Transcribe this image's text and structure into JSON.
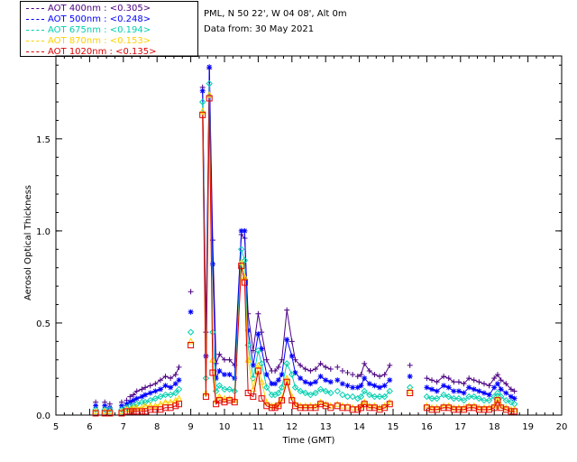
{
  "header": {
    "site": "PML, N 50 22', W 04 08', Alt 0m",
    "date": "Data from: 30 May 2021"
  },
  "legend": [
    {
      "label": "AOT  400nm : <0.305>",
      "color": "#4B0082"
    },
    {
      "label": "AOT  500nm : <0.248>",
      "color": "#0000FF"
    },
    {
      "label": "AOT  675nm : <0.194>",
      "color": "#00D0B0"
    },
    {
      "label": "AOT  870nm : <0.153>",
      "color": "#FFD000"
    },
    {
      "label": "AOT 1020nm : <0.135>",
      "color": "#E00000"
    }
  ],
  "chart_data": {
    "type": "scatter",
    "title": "",
    "xlabel": "Time (GMT)",
    "ylabel": "Aerosol Optical Thickness",
    "xlim": [
      5,
      20
    ],
    "ylim": [
      0,
      1.95
    ],
    "xticks": [
      5,
      6,
      7,
      8,
      9,
      10,
      11,
      12,
      13,
      14,
      15,
      16,
      17,
      18,
      19,
      20
    ],
    "yticks": [
      {
        "value": 0.0,
        "label": "0.0"
      },
      {
        "value": 0.5,
        "label": "0.5"
      },
      {
        "value": 1.0,
        "label": "1.0"
      },
      {
        "value": 1.5,
        "label": "1.5"
      }
    ],
    "x": [
      6.18,
      6.45,
      6.6,
      6.95,
      7.1,
      7.2,
      7.3,
      7.4,
      7.55,
      7.65,
      7.8,
      7.95,
      8.1,
      8.25,
      8.4,
      8.55,
      8.65,
      9.0,
      9.35,
      9.45,
      9.55,
      9.65,
      9.75,
      9.85,
      10.0,
      10.15,
      10.3,
      10.5,
      10.6,
      10.7,
      10.85,
      11.0,
      11.1,
      11.25,
      11.4,
      11.5,
      11.6,
      11.7,
      11.85,
      12.0,
      12.1,
      12.25,
      12.4,
      12.55,
      12.7,
      12.85,
      13.0,
      13.15,
      13.35,
      13.5,
      13.65,
      13.8,
      13.95,
      14.05,
      14.15,
      14.3,
      14.45,
      14.6,
      14.75,
      14.9,
      15.5,
      16.0,
      16.15,
      16.3,
      16.5,
      16.65,
      16.8,
      16.95,
      17.1,
      17.25,
      17.4,
      17.55,
      17.7,
      17.85,
      18.0,
      18.1,
      18.2,
      18.35,
      18.5,
      18.6
    ],
    "series": [
      {
        "name": "AOT 400nm",
        "marker": "plus",
        "color": "#4B0082",
        "values": [
          0.07,
          0.07,
          0.06,
          0.07,
          0.08,
          0.1,
          0.11,
          0.13,
          0.14,
          0.15,
          0.16,
          0.17,
          0.19,
          0.21,
          0.2,
          0.22,
          0.26,
          0.67,
          1.78,
          0.45,
          1.88,
          0.95,
          0.28,
          0.33,
          0.3,
          0.3,
          0.27,
          0.98,
          0.96,
          0.55,
          0.35,
          0.55,
          0.45,
          0.3,
          0.24,
          0.24,
          0.26,
          0.3,
          0.57,
          0.4,
          0.3,
          0.27,
          0.25,
          0.24,
          0.25,
          0.28,
          0.26,
          0.25,
          0.26,
          0.24,
          0.23,
          0.22,
          0.21,
          0.22,
          0.28,
          0.24,
          0.22,
          0.21,
          0.22,
          0.27,
          0.27,
          0.2,
          0.19,
          0.18,
          0.21,
          0.2,
          0.18,
          0.18,
          0.17,
          0.2,
          0.19,
          0.18,
          0.17,
          0.16,
          0.2,
          0.22,
          0.19,
          0.17,
          0.14,
          0.13
        ]
      },
      {
        "name": "AOT 500nm",
        "marker": "star",
        "color": "#0000FF",
        "values": [
          0.05,
          0.05,
          0.04,
          0.05,
          0.06,
          0.07,
          0.08,
          0.09,
          0.1,
          0.11,
          0.12,
          0.13,
          0.14,
          0.16,
          0.15,
          0.17,
          0.19,
          0.56,
          1.76,
          0.32,
          1.89,
          0.82,
          0.2,
          0.24,
          0.22,
          0.22,
          0.2,
          1.0,
          1.0,
          0.46,
          0.27,
          0.44,
          0.36,
          0.22,
          0.17,
          0.17,
          0.19,
          0.22,
          0.41,
          0.32,
          0.23,
          0.2,
          0.18,
          0.17,
          0.18,
          0.21,
          0.19,
          0.18,
          0.19,
          0.17,
          0.16,
          0.15,
          0.15,
          0.16,
          0.2,
          0.17,
          0.16,
          0.15,
          0.16,
          0.19,
          0.21,
          0.15,
          0.14,
          0.13,
          0.16,
          0.15,
          0.13,
          0.13,
          0.12,
          0.15,
          0.14,
          0.13,
          0.12,
          0.11,
          0.15,
          0.17,
          0.14,
          0.12,
          0.1,
          0.09
        ]
      },
      {
        "name": "AOT 675nm",
        "marker": "diamond",
        "color": "#00D0B0",
        "values": [
          0.03,
          0.03,
          0.03,
          0.03,
          0.04,
          0.05,
          0.05,
          0.06,
          0.07,
          0.07,
          0.08,
          0.09,
          0.1,
          0.11,
          0.11,
          0.12,
          0.14,
          0.45,
          1.7,
          0.2,
          1.8,
          0.45,
          0.13,
          0.16,
          0.14,
          0.14,
          0.13,
          0.9,
          0.84,
          0.38,
          0.2,
          0.35,
          0.28,
          0.15,
          0.11,
          0.11,
          0.12,
          0.15,
          0.28,
          0.22,
          0.15,
          0.13,
          0.12,
          0.11,
          0.12,
          0.14,
          0.13,
          0.12,
          0.13,
          0.11,
          0.1,
          0.1,
          0.09,
          0.1,
          0.13,
          0.11,
          0.1,
          0.1,
          0.1,
          0.13,
          0.15,
          0.1,
          0.09,
          0.09,
          0.11,
          0.1,
          0.09,
          0.09,
          0.08,
          0.1,
          0.1,
          0.09,
          0.08,
          0.08,
          0.1,
          0.12,
          0.1,
          0.08,
          0.07,
          0.06
        ]
      },
      {
        "name": "AOT 870nm",
        "marker": "triangle",
        "color": "#FFD000",
        "values": [
          0.02,
          0.02,
          0.02,
          0.02,
          0.03,
          0.03,
          0.04,
          0.04,
          0.04,
          0.05,
          0.05,
          0.05,
          0.06,
          0.07,
          0.07,
          0.08,
          0.09,
          0.4,
          1.65,
          0.12,
          1.74,
          0.3,
          0.08,
          0.1,
          0.09,
          0.09,
          0.08,
          0.83,
          0.75,
          0.3,
          0.14,
          0.27,
          0.18,
          0.07,
          0.05,
          0.05,
          0.06,
          0.09,
          0.2,
          0.1,
          0.06,
          0.05,
          0.05,
          0.05,
          0.05,
          0.07,
          0.06,
          0.05,
          0.06,
          0.05,
          0.05,
          0.04,
          0.04,
          0.05,
          0.07,
          0.05,
          0.05,
          0.04,
          0.05,
          0.07,
          0.13,
          0.05,
          0.04,
          0.04,
          0.05,
          0.05,
          0.04,
          0.04,
          0.04,
          0.05,
          0.05,
          0.04,
          0.04,
          0.04,
          0.05,
          0.09,
          0.05,
          0.04,
          0.03,
          0.03
        ]
      },
      {
        "name": "AOT 1020nm",
        "marker": "square",
        "color": "#E00000",
        "values": [
          0.01,
          0.01,
          0.01,
          0.01,
          0.02,
          0.02,
          0.02,
          0.02,
          0.02,
          0.02,
          0.03,
          0.03,
          0.03,
          0.04,
          0.04,
          0.05,
          0.06,
          0.38,
          1.63,
          0.1,
          1.72,
          0.23,
          0.06,
          0.08,
          0.07,
          0.08,
          0.07,
          0.81,
          0.72,
          0.12,
          0.1,
          0.24,
          0.09,
          0.05,
          0.04,
          0.04,
          0.05,
          0.08,
          0.18,
          0.08,
          0.05,
          0.04,
          0.04,
          0.04,
          0.04,
          0.06,
          0.05,
          0.04,
          0.05,
          0.04,
          0.04,
          0.03,
          0.03,
          0.04,
          0.06,
          0.04,
          0.04,
          0.03,
          0.04,
          0.06,
          0.12,
          0.04,
          0.03,
          0.03,
          0.04,
          0.04,
          0.03,
          0.03,
          0.03,
          0.04,
          0.04,
          0.03,
          0.03,
          0.03,
          0.04,
          0.08,
          0.04,
          0.03,
          0.02,
          0.02
        ]
      }
    ]
  }
}
